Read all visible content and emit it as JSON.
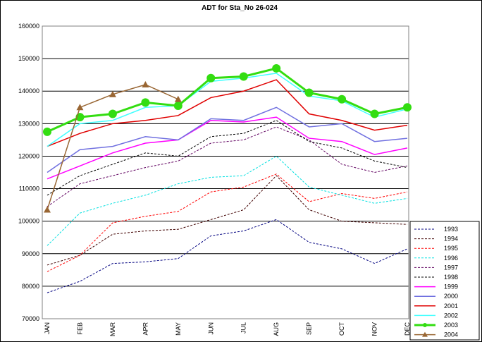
{
  "chart_data": {
    "type": "line",
    "title": "ADT for Sta_No 26-024",
    "categories": [
      "JAN",
      "FEB",
      "MAR",
      "APR",
      "MAY",
      "JUN",
      "JUL",
      "AUG",
      "SEP",
      "OCT",
      "NOV",
      "DEC"
    ],
    "ylim": [
      70000,
      160000
    ],
    "yticks": [
      70000,
      80000,
      90000,
      100000,
      110000,
      120000,
      130000,
      140000,
      150000,
      160000
    ],
    "grid": true,
    "legend": "bottom-right",
    "series": [
      {
        "name": "1993",
        "color": "#000080",
        "dashed": true,
        "values": [
          78000,
          81500,
          87000,
          87500,
          88500,
          95500,
          97000,
          100500,
          93500,
          91500,
          87000,
          91500
        ]
      },
      {
        "name": "1994",
        "color": "#400000",
        "dashed": true,
        "values": [
          86500,
          89500,
          96000,
          97000,
          97500,
          100500,
          103500,
          114000,
          103500,
          100000,
          99500,
          99000
        ]
      },
      {
        "name": "1995",
        "color": "#ff0000",
        "dashed": true,
        "values": [
          84500,
          89500,
          99500,
          101500,
          103000,
          109000,
          110500,
          114500,
          106000,
          108500,
          107000,
          109000
        ]
      },
      {
        "name": "1996",
        "color": "#00e0e0",
        "dashed": true,
        "values": [
          92500,
          102500,
          105500,
          108000,
          111500,
          113500,
          114000,
          120000,
          110500,
          108000,
          105500,
          107000
        ]
      },
      {
        "name": "1997",
        "color": "#600060",
        "dashed": true,
        "values": [
          104500,
          111500,
          114000,
          116500,
          118500,
          124000,
          125000,
          129000,
          125000,
          117500,
          115000,
          117000
        ]
      },
      {
        "name": "1998",
        "color": "#000000",
        "dashed": true,
        "values": [
          108000,
          114000,
          117500,
          121000,
          120000,
          126000,
          127000,
          131000,
          124500,
          122500,
          118500,
          116500
        ]
      },
      {
        "name": "1999",
        "color": "#ff00ff",
        "values": [
          113000,
          117000,
          121000,
          124000,
          125000,
          131000,
          130500,
          132000,
          125500,
          124500,
          120500,
          122500
        ]
      },
      {
        "name": "2000",
        "color": "#7070e0",
        "values": [
          115000,
          122000,
          123000,
          126000,
          125000,
          131500,
          131000,
          135000,
          129000,
          130000,
          124500,
          125500
        ]
      },
      {
        "name": "2001",
        "color": "#e00000",
        "values": [
          123000,
          127000,
          130000,
          131000,
          132500,
          138000,
          140000,
          143500,
          133000,
          131000,
          128000,
          129500
        ]
      },
      {
        "name": "2002",
        "color": "#40ffff",
        "values": [
          123000,
          130000,
          131000,
          135000,
          135500,
          143000,
          144000,
          145500,
          138500,
          137000,
          132000,
          134500
        ]
      },
      {
        "name": "2003",
        "color": "#33dd11",
        "marker": "circle",
        "width": 3,
        "values": [
          127500,
          132000,
          133000,
          136500,
          135500,
          144000,
          144500,
          147000,
          139500,
          137500,
          133000,
          135000
        ]
      },
      {
        "name": "2004",
        "color": "#996633",
        "marker": "triangle",
        "values": [
          103500,
          135000,
          139000,
          142000,
          137500,
          null,
          null,
          null,
          null,
          null,
          null,
          null
        ]
      }
    ]
  }
}
